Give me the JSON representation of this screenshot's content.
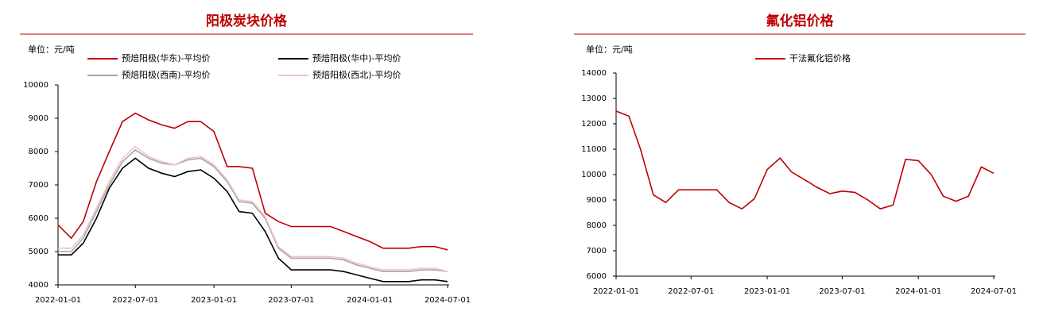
{
  "chart_data": [
    {
      "type": "line",
      "title": "阳极炭块价格",
      "unit": "单位：元/吨",
      "x": [
        "2022-01-01",
        "2022-02-01",
        "2022-03-01",
        "2022-04-01",
        "2022-05-01",
        "2022-06-01",
        "2022-07-01",
        "2022-08-01",
        "2022-09-01",
        "2022-10-01",
        "2022-11-01",
        "2022-12-01",
        "2023-01-01",
        "2023-02-01",
        "2023-03-01",
        "2023-04-01",
        "2023-05-01",
        "2023-06-01",
        "2023-07-01",
        "2023-08-01",
        "2023-09-01",
        "2023-10-01",
        "2023-11-01",
        "2023-12-01",
        "2024-01-01",
        "2024-02-01",
        "2024-03-01",
        "2024-04-01",
        "2024-05-01",
        "2024-06-01",
        "2024-07-01"
      ],
      "series": [
        {
          "name": "预焙阳极(华东)-平均价",
          "color": "#c00000",
          "values": [
            5800,
            5400,
            5900,
            7100,
            8000,
            8900,
            9150,
            8950,
            8800,
            8700,
            8900,
            8900,
            8600,
            7550,
            7550,
            7500,
            6150,
            5900,
            5750,
            5750,
            5750,
            5750,
            5600,
            5450,
            5300,
            5100,
            5100,
            5100,
            5150,
            5150,
            5050
          ]
        },
        {
          "name": "预焙阳极(华中)-平均价",
          "color": "#000000",
          "values": [
            4900,
            4900,
            5250,
            6000,
            6900,
            7500,
            7800,
            7500,
            7350,
            7250,
            7400,
            7450,
            7200,
            6800,
            6200,
            6150,
            5600,
            4800,
            4450,
            4450,
            4450,
            4450,
            4400,
            4300,
            4200,
            4100,
            4100,
            4100,
            4150,
            4150,
            4100
          ]
        },
        {
          "name": "预焙阳极(西南)-平均价",
          "color": "#a6a6a6",
          "values": [
            5000,
            5000,
            5400,
            6200,
            7000,
            7700,
            8050,
            7800,
            7650,
            7600,
            7750,
            7800,
            7550,
            7100,
            6500,
            6450,
            6000,
            5100,
            4800,
            4800,
            4800,
            4800,
            4750,
            4600,
            4500,
            4400,
            4400,
            4400,
            4450,
            4450,
            4400
          ]
        },
        {
          "name": "预焙阳极(西北)-平均价",
          "color": "#f2c4c4",
          "values": [
            5100,
            5100,
            5500,
            6300,
            7100,
            7800,
            8150,
            7850,
            7700,
            7600,
            7800,
            7850,
            7600,
            7150,
            6550,
            6500,
            6050,
            5150,
            4850,
            4850,
            4850,
            4850,
            4800,
            4650,
            4550,
            4450,
            4450,
            4450,
            4500,
            4500,
            4400
          ]
        }
      ],
      "xlim": [
        "2022-01-01",
        "2024-07-01"
      ],
      "xticks": [
        "2022-01-01",
        "2022-07-01",
        "2023-01-01",
        "2023-07-01",
        "2024-01-01",
        "2024-07-01"
      ],
      "ylim": [
        4000,
        10000
      ],
      "yticks": [
        4000,
        5000,
        6000,
        7000,
        8000,
        9000,
        10000
      ]
    },
    {
      "type": "line",
      "title": "氟化铝价格",
      "unit": "单位：元/吨",
      "x": [
        "2022-01-01",
        "2022-02-01",
        "2022-03-01",
        "2022-04-01",
        "2022-05-01",
        "2022-06-01",
        "2022-07-01",
        "2022-08-01",
        "2022-09-01",
        "2022-10-01",
        "2022-11-01",
        "2022-12-01",
        "2023-01-01",
        "2023-02-01",
        "2023-03-01",
        "2023-04-01",
        "2023-05-01",
        "2023-06-01",
        "2023-07-01",
        "2023-08-01",
        "2023-09-01",
        "2023-10-01",
        "2023-11-01",
        "2023-12-01",
        "2024-01-01",
        "2024-02-01",
        "2024-03-01",
        "2024-04-01",
        "2024-05-01",
        "2024-06-01",
        "2024-07-01"
      ],
      "series": [
        {
          "name": "干法氟化铝价格",
          "color": "#c00000",
          "values": [
            12500,
            12300,
            11000,
            9200,
            8900,
            9400,
            9400,
            9400,
            9400,
            8900,
            8650,
            9050,
            10200,
            10650,
            10100,
            9800,
            9500,
            9250,
            9350,
            9300,
            9000,
            8650,
            8800,
            10600,
            10550,
            10000,
            9150,
            8950,
            9150,
            10300,
            10050
          ]
        }
      ],
      "xlim": [
        "2022-01-01",
        "2024-07-01"
      ],
      "xticks": [
        "2022-01-01",
        "2022-07-01",
        "2023-01-01",
        "2023-07-01",
        "2024-01-01",
        "2024-07-01"
      ],
      "ylim": [
        6000,
        14000
      ],
      "yticks": [
        6000,
        7000,
        8000,
        9000,
        10000,
        11000,
        12000,
        13000,
        14000
      ]
    }
  ]
}
